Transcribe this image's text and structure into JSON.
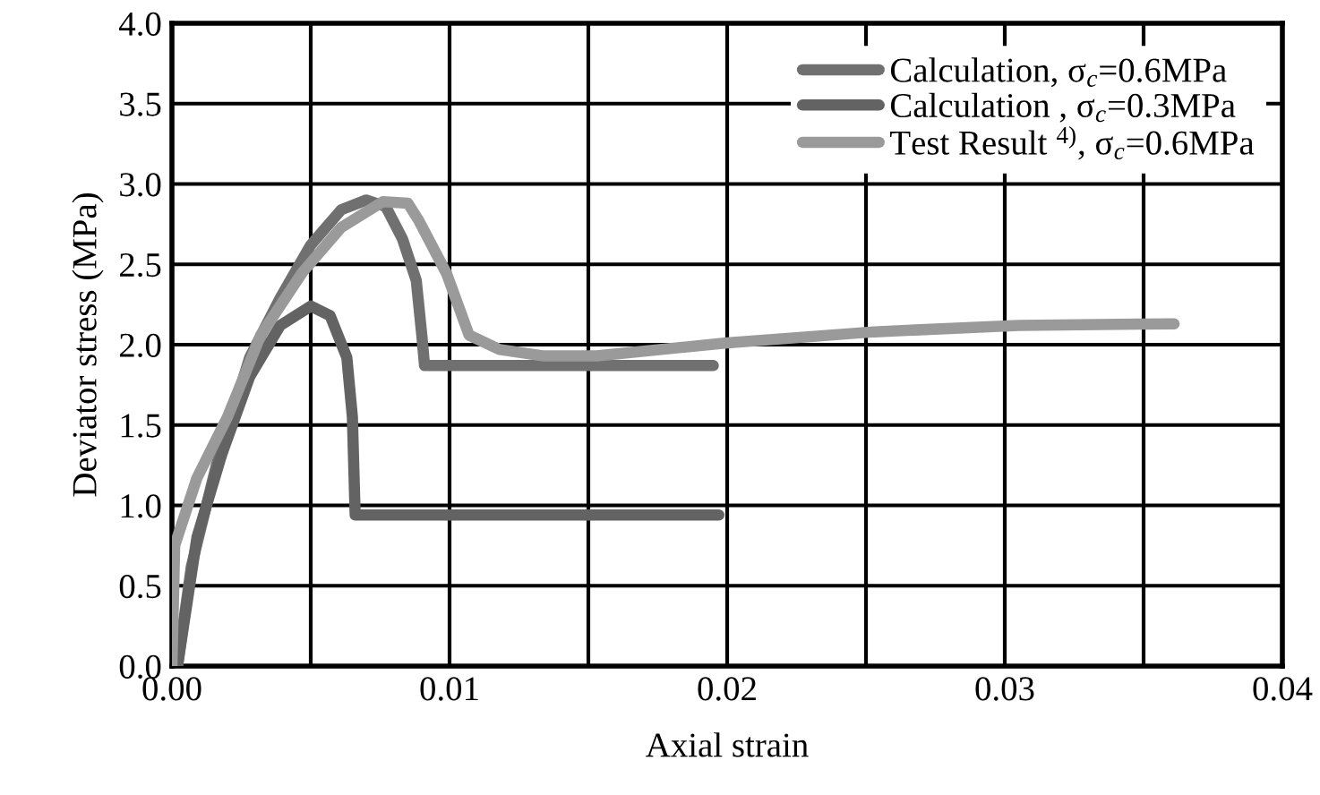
{
  "chart_data": {
    "type": "line",
    "xlabel": "Axial strain",
    "ylabel": "Deviator stress (MPa)",
    "xlim": [
      0,
      0.04
    ],
    "ylim": [
      0,
      4.0
    ],
    "xticks": [
      {
        "value": 0,
        "label": "0.00"
      },
      {
        "value": 0.005,
        "label": null
      },
      {
        "value": 0.01,
        "label": "0.01"
      },
      {
        "value": 0.015,
        "label": null
      },
      {
        "value": 0.02,
        "label": "0.02"
      },
      {
        "value": 0.025,
        "label": null
      },
      {
        "value": 0.03,
        "label": "0.03"
      },
      {
        "value": 0.035,
        "label": null
      },
      {
        "value": 0.04,
        "label": "0.04"
      }
    ],
    "yticks": [
      {
        "value": 0,
        "label": "0.0"
      },
      {
        "value": 0.5,
        "label": "0.5"
      },
      {
        "value": 1.0,
        "label": "1.0"
      },
      {
        "value": 1.5,
        "label": "1.5"
      },
      {
        "value": 2.0,
        "label": "2.0"
      },
      {
        "value": 2.5,
        "label": "2.5"
      },
      {
        "value": 3.0,
        "label": "3.0"
      },
      {
        "value": 3.5,
        "label": "3.5"
      },
      {
        "value": 4.0,
        "label": "4.0"
      }
    ],
    "grid": true,
    "legend": "top right",
    "line_style": "solid",
    "marker": "none",
    "series": [
      {
        "name": "Calculation, σ$_{c}$=0.6MPa",
        "color": "#707070",
        "x": [
          0.0002,
          0.0007,
          0.0016,
          0.0028,
          0.0039,
          0.005,
          0.0061,
          0.007,
          0.0077,
          0.0083,
          0.0088,
          0.009,
          0.0091,
          0.0195
        ],
        "values": [
          0.0,
          0.62,
          1.25,
          1.92,
          2.29,
          2.62,
          2.84,
          2.9,
          2.86,
          2.66,
          2.4,
          2.06,
          1.87,
          1.87
        ]
      },
      {
        "name": "Calculation , σ$_{c}$=0.3MPa",
        "color": "#636363",
        "x": [
          0.0002,
          0.0009,
          0.0018,
          0.0028,
          0.0039,
          0.005,
          0.0057,
          0.0063,
          0.0065,
          0.0066,
          0.0197
        ],
        "values": [
          0.0,
          0.8,
          1.32,
          1.8,
          2.12,
          2.24,
          2.18,
          1.92,
          1.55,
          0.94,
          0.94
        ]
      },
      {
        "name": "Test Result $^{4)}$, σ$_{c}$=0.6MPa",
        "color": "#9a9a9a",
        "x": [
          0.0,
          0.0001,
          0.0009,
          0.002,
          0.0032,
          0.0047,
          0.0061,
          0.0076,
          0.0085,
          0.0089,
          0.0099,
          0.0107,
          0.0118,
          0.0134,
          0.0153,
          0.0199,
          0.0253,
          0.0305,
          0.0361
        ],
        "values": [
          0.0,
          0.75,
          1.17,
          1.55,
          2.06,
          2.45,
          2.73,
          2.89,
          2.88,
          2.77,
          2.44,
          2.06,
          1.97,
          1.93,
          1.93,
          2.01,
          2.08,
          2.12,
          2.13
        ]
      }
    ]
  }
}
